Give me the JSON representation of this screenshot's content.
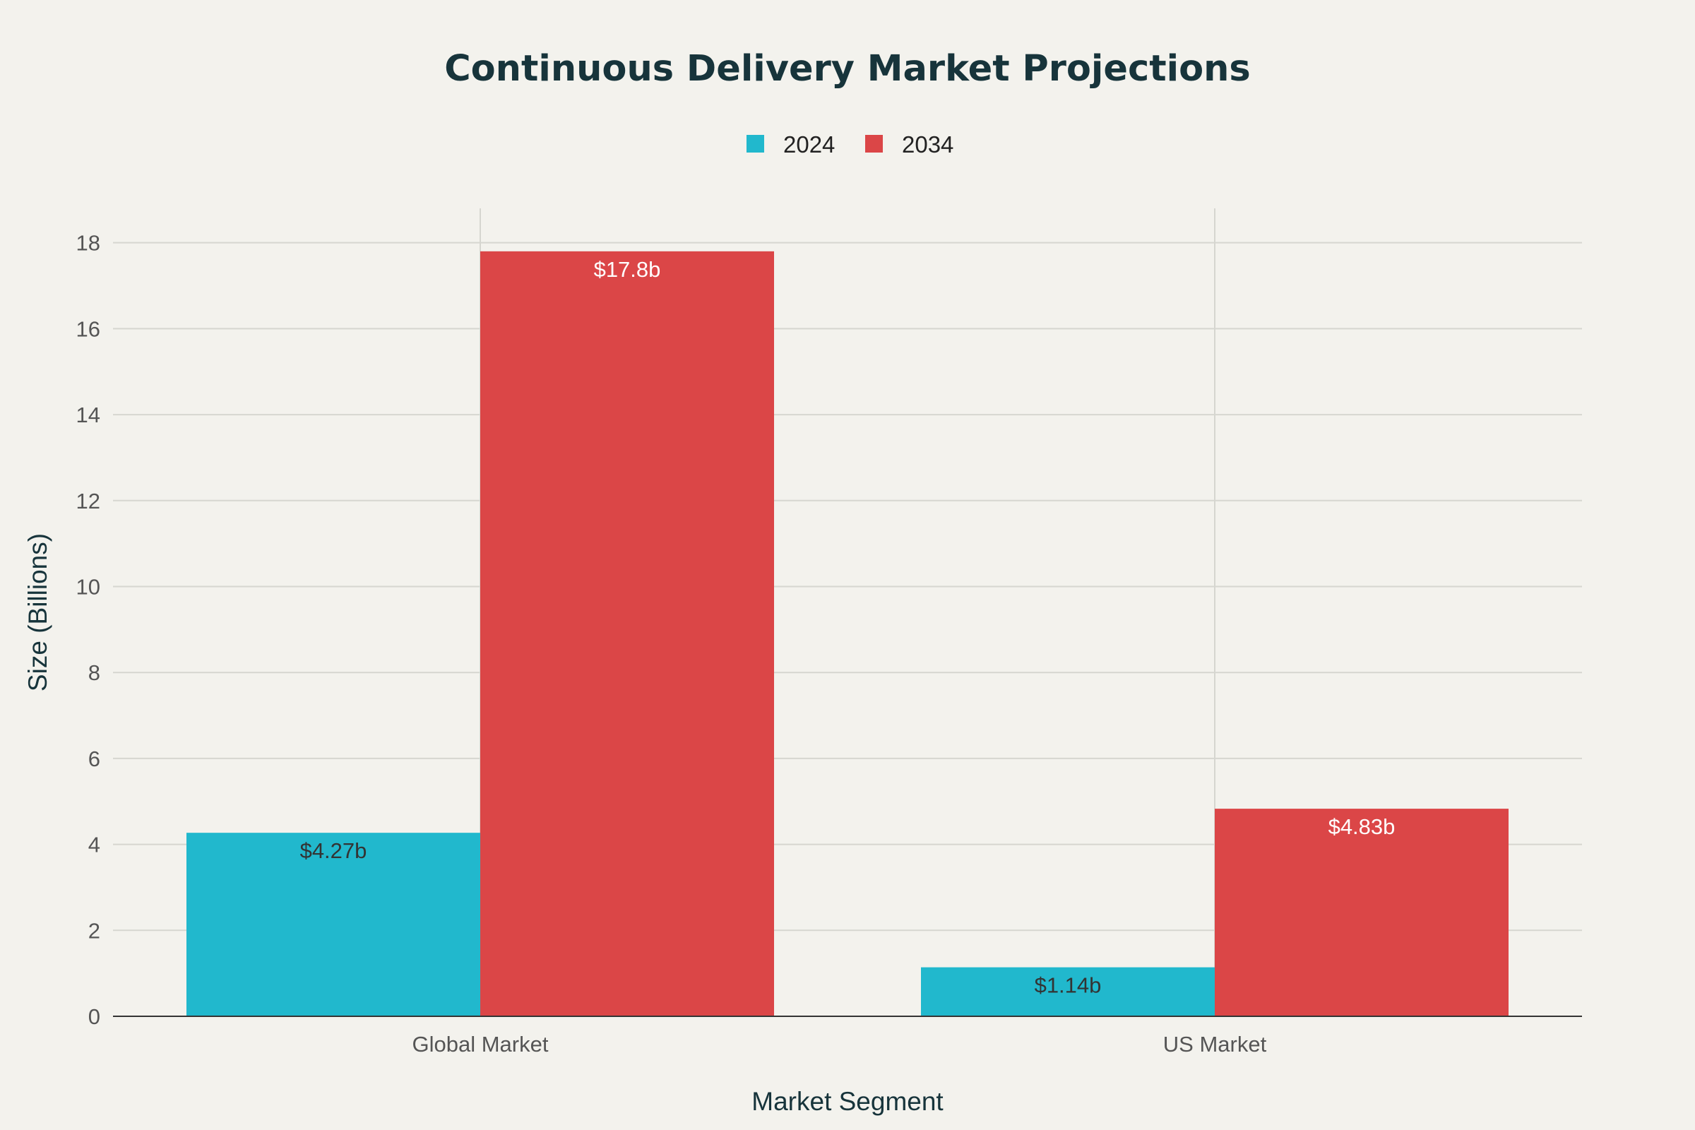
{
  "chart_data": {
    "type": "bar",
    "title": "Continuous Delivery Market Projections",
    "xlabel": "Market Segment",
    "ylabel": "Size (Billions)",
    "categories": [
      "Global Market",
      "US Market"
    ],
    "series": [
      {
        "name": "2024",
        "values": [
          4.27,
          1.14
        ],
        "labels": [
          "$4.27b",
          "$1.14b"
        ],
        "color": "#21b8cd",
        "label_color": "#333333"
      },
      {
        "name": "2034",
        "values": [
          17.8,
          4.83
        ],
        "labels": [
          "$17.8b",
          "$4.83b"
        ],
        "color": "#db4647",
        "label_color": "#ffffff"
      }
    ],
    "ylim": [
      0,
      18.8
    ],
    "yticks": [
      0,
      2,
      4,
      6,
      8,
      10,
      12,
      14,
      16,
      18
    ],
    "grid": true,
    "legend_position": "top-center"
  }
}
